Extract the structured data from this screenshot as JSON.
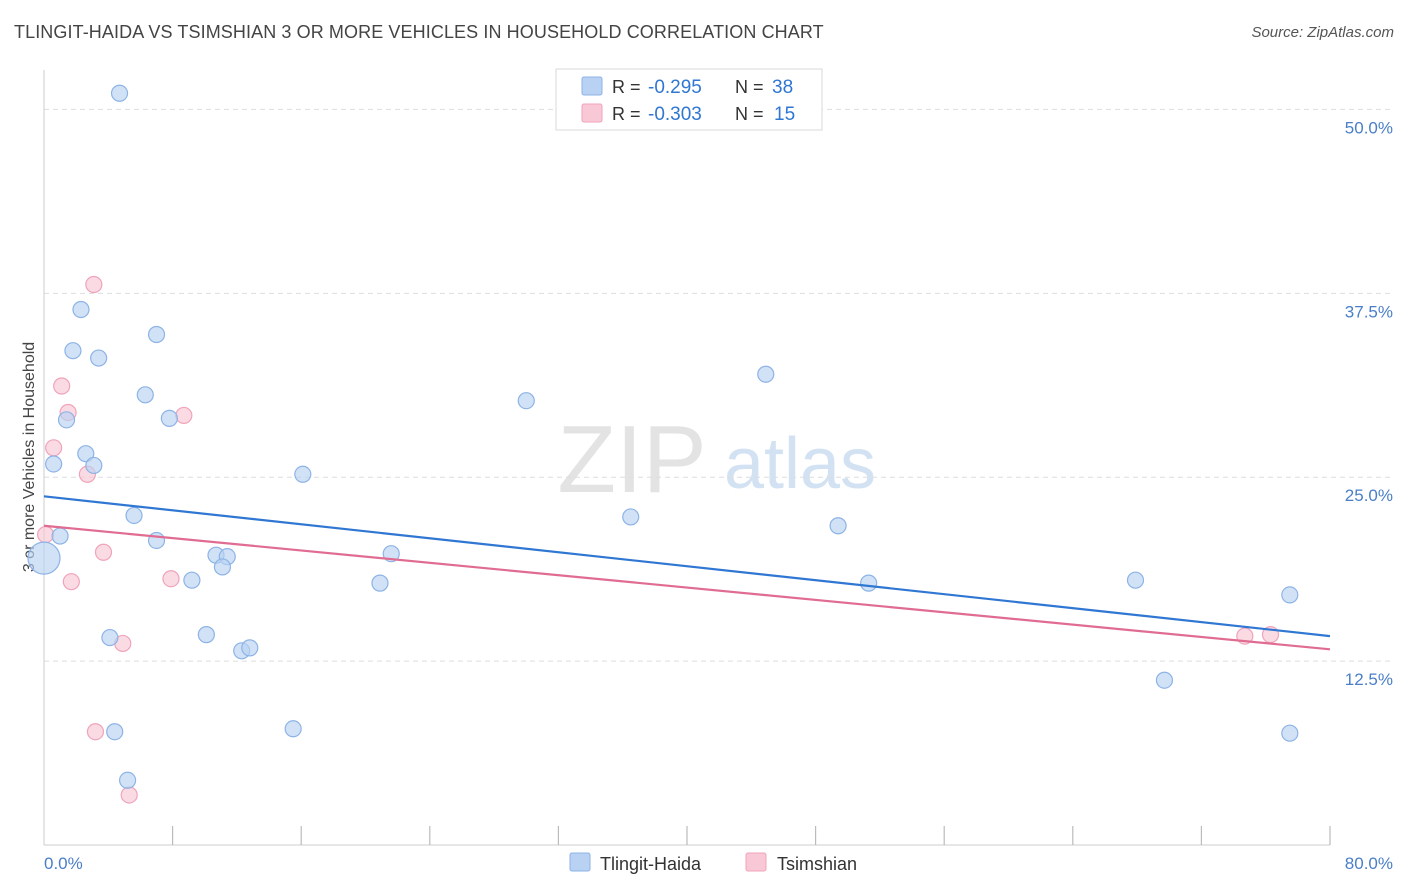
{
  "header": {
    "title": "TLINGIT-HAIDA VS TSIMSHIAN 3 OR MORE VEHICLES IN HOUSEHOLD CORRELATION CHART",
    "source": "Source: ZipAtlas.com"
  },
  "watermark": {
    "zip": "ZIP",
    "atlas": "atlas"
  },
  "colors": {
    "blue_fill": "#b9d2f3",
    "blue_stroke": "#8db3e6",
    "blue_line": "#2f77d2",
    "pink_fill": "#f8c8d6",
    "pink_stroke": "#f0a3ba",
    "pink_line": "#e06c92",
    "tick_text": "#4a7fc8",
    "grid": "#dddddd"
  },
  "legend_top": {
    "rows": [
      {
        "r_label": "R =",
        "r_value": "-0.295",
        "n_label": "N =",
        "n_value": "38"
      },
      {
        "r_label": "R =",
        "r_value": "-0.303",
        "n_label": "N =",
        "n_value": "15"
      }
    ]
  },
  "chart_data": {
    "type": "scatter",
    "title": "TLINGIT-HAIDA VS TSIMSHIAN 3 OR MORE VEHICLES IN HOUSEHOLD CORRELATION CHART",
    "xlabel": "",
    "ylabel": "3 or more Vehicles in Household",
    "xlim": [
      0,
      80
    ],
    "ylim": [
      0,
      52
    ],
    "x_tick_labels": [
      "0.0%",
      "80.0%"
    ],
    "y_ticks": [
      12.5,
      25.0,
      37.5,
      50.0
    ],
    "y_tick_labels": [
      "12.5%",
      "25.0%",
      "37.5%",
      "50.0%"
    ],
    "grid": true,
    "legend_position": "bottom-center",
    "series": [
      {
        "name": "Tlingit-Haida",
        "color": "blue",
        "R": -0.295,
        "N": 38,
        "trend": {
          "x": [
            0,
            80
          ],
          "y": [
            23.7,
            14.2
          ]
        },
        "points": [
          {
            "x": 4.7,
            "y": 51.1
          },
          {
            "x": 2.3,
            "y": 36.4
          },
          {
            "x": 7.0,
            "y": 34.7
          },
          {
            "x": 1.8,
            "y": 33.6
          },
          {
            "x": 3.4,
            "y": 33.1
          },
          {
            "x": 6.3,
            "y": 30.6
          },
          {
            "x": 1.4,
            "y": 28.9
          },
          {
            "x": 7.8,
            "y": 29.0
          },
          {
            "x": 2.6,
            "y": 26.6
          },
          {
            "x": 0.6,
            "y": 25.9
          },
          {
            "x": 3.1,
            "y": 25.8
          },
          {
            "x": 16.1,
            "y": 25.2
          },
          {
            "x": 5.6,
            "y": 22.4
          },
          {
            "x": 1.0,
            "y": 21.0
          },
          {
            "x": 7.0,
            "y": 20.7
          },
          {
            "x": 10.7,
            "y": 19.7
          },
          {
            "x": 11.4,
            "y": 19.6
          },
          {
            "x": 11.1,
            "y": 18.9
          },
          {
            "x": 21.6,
            "y": 19.8
          },
          {
            "x": 9.2,
            "y": 18.0
          },
          {
            "x": 20.9,
            "y": 17.8
          },
          {
            "x": 0.0,
            "y": 19.5,
            "big": true
          },
          {
            "x": 4.1,
            "y": 14.1
          },
          {
            "x": 10.1,
            "y": 14.3
          },
          {
            "x": 12.3,
            "y": 13.2
          },
          {
            "x": 12.8,
            "y": 13.4
          },
          {
            "x": 4.4,
            "y": 7.7
          },
          {
            "x": 15.5,
            "y": 7.9
          },
          {
            "x": 5.2,
            "y": 4.4
          },
          {
            "x": 30.0,
            "y": 30.2
          },
          {
            "x": 36.5,
            "y": 22.3
          },
          {
            "x": 44.9,
            "y": 32.0
          },
          {
            "x": 49.4,
            "y": 21.7
          },
          {
            "x": 51.3,
            "y": 17.8
          },
          {
            "x": 67.9,
            "y": 18.0
          },
          {
            "x": 77.5,
            "y": 17.0
          },
          {
            "x": 69.7,
            "y": 11.2
          },
          {
            "x": 77.5,
            "y": 7.6
          }
        ]
      },
      {
        "name": "Tsimshian",
        "color": "pink",
        "R": -0.303,
        "N": 15,
        "trend": {
          "x": [
            0,
            80
          ],
          "y": [
            21.7,
            13.3
          ]
        },
        "points": [
          {
            "x": 3.1,
            "y": 38.1
          },
          {
            "x": 1.1,
            "y": 31.2
          },
          {
            "x": 1.5,
            "y": 29.4
          },
          {
            "x": 8.7,
            "y": 29.2
          },
          {
            "x": 0.6,
            "y": 27.0
          },
          {
            "x": 2.7,
            "y": 25.2
          },
          {
            "x": 0.1,
            "y": 21.1
          },
          {
            "x": 3.7,
            "y": 19.9
          },
          {
            "x": 1.7,
            "y": 17.9
          },
          {
            "x": 7.9,
            "y": 18.1
          },
          {
            "x": 4.9,
            "y": 13.7
          },
          {
            "x": 3.2,
            "y": 7.7
          },
          {
            "x": 5.3,
            "y": 3.4
          },
          {
            "x": 74.7,
            "y": 14.2
          },
          {
            "x": 76.3,
            "y": 14.3
          }
        ]
      }
    ]
  }
}
